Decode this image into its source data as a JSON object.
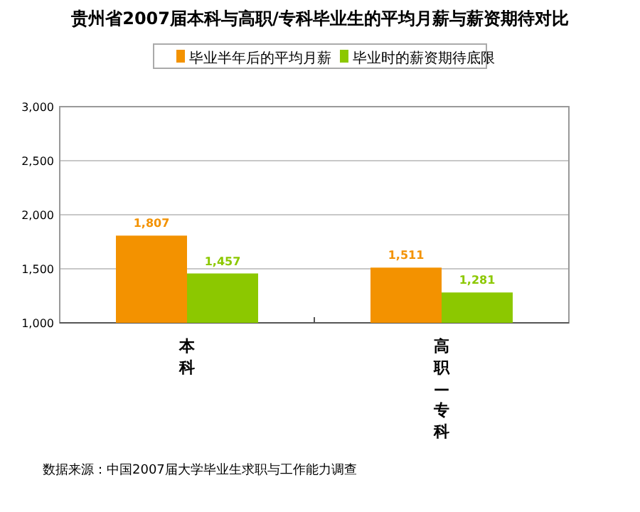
{
  "chart_data": {
    "type": "bar",
    "title": "贵州省2007届本科与高职/专科毕业生的平均月薪与薪资期待对比",
    "categories": [
      "本科",
      "高职—专科"
    ],
    "series": [
      {
        "name": "毕业半年后的平均月薪",
        "color": "#f39200",
        "values": [
          1807,
          1511
        ],
        "value_labels": [
          "1,807",
          "1,511"
        ]
      },
      {
        "name": "毕业时的薪资期待底限",
        "color": "#8cc800",
        "values": [
          1457,
          1281
        ],
        "value_labels": [
          "1,457",
          "1,281"
        ]
      }
    ],
    "ylim": [
      1000,
      3000
    ],
    "yticks": [
      {
        "value": 1000,
        "label": "1,000"
      },
      {
        "value": 1500,
        "label": "1,500"
      },
      {
        "value": 2000,
        "label": "2,000"
      },
      {
        "value": 2500,
        "label": "2,500"
      },
      {
        "value": 3000,
        "label": "3,000"
      }
    ],
    "grid": "y",
    "legend": "top",
    "annotations": [
      "数据来源：中国2007届大学毕业生求职与工作能力调查"
    ]
  }
}
